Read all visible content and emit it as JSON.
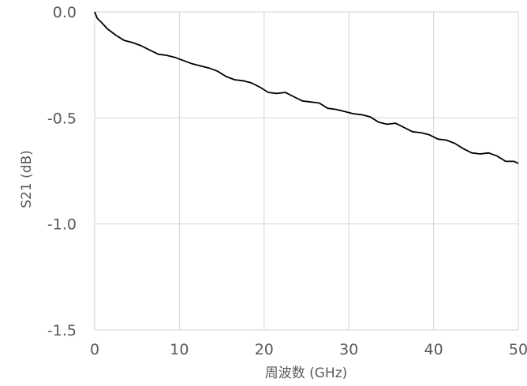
{
  "chart_data": {
    "type": "line",
    "xlabel": "周波数 (GHz)",
    "ylabel": "S21 (dB)",
    "xlim": [
      0,
      50
    ],
    "ylim": [
      -1.5,
      0.0
    ],
    "x_ticks": [
      0,
      10,
      20,
      30,
      40,
      50
    ],
    "x_tick_labels": [
      "0",
      "10",
      "20",
      "30",
      "40",
      "50"
    ],
    "y_ticks": [
      0.0,
      -0.5,
      -1.0,
      -1.5
    ],
    "y_tick_labels": [
      "0.0",
      "-0.5",
      "-1.0",
      "-1.5"
    ],
    "grid": true,
    "legend": "none",
    "series": [
      {
        "color": "#000000",
        "x": [
          0,
          0.3,
          0.8,
          1.5,
          2.5,
          3.5,
          4.5,
          5.5,
          6.5,
          7.5,
          8.5,
          9.5,
          10.5,
          11.5,
          12.5,
          13.5,
          14.5,
          15.5,
          16.5,
          17.5,
          18.5,
          19.5,
          20.5,
          21.5,
          22.5,
          23.5,
          24.5,
          25.5,
          26.5,
          27.5,
          28.5,
          29.5,
          30.5,
          31.5,
          32.5,
          33.5,
          34.5,
          35.5,
          36.5,
          37.5,
          38.5,
          39.5,
          40.5,
          41.5,
          42.5,
          43.5,
          44.5,
          45.5,
          46.5,
          47.5,
          48.5,
          49.5,
          50
        ],
        "y": [
          0.0,
          -0.03,
          -0.05,
          -0.08,
          -0.11,
          -0.135,
          -0.145,
          -0.16,
          -0.18,
          -0.2,
          -0.205,
          -0.215,
          -0.23,
          -0.245,
          -0.255,
          -0.265,
          -0.28,
          -0.305,
          -0.32,
          -0.325,
          -0.335,
          -0.355,
          -0.38,
          -0.385,
          -0.38,
          -0.4,
          -0.42,
          -0.425,
          -0.43,
          -0.455,
          -0.46,
          -0.47,
          -0.48,
          -0.485,
          -0.495,
          -0.52,
          -0.53,
          -0.525,
          -0.545,
          -0.565,
          -0.57,
          -0.58,
          -0.6,
          -0.605,
          -0.62,
          -0.645,
          -0.665,
          -0.67,
          -0.665,
          -0.68,
          -0.705,
          -0.705,
          -0.715
        ]
      }
    ]
  }
}
